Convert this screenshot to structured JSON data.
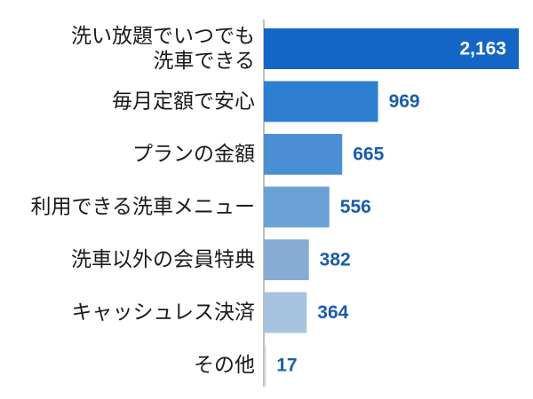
{
  "chart_data": {
    "type": "bar",
    "orientation": "horizontal",
    "categories": [
      [
        "洗い放題でいつでも",
        "洗車できる"
      ],
      [
        "毎月定額で安心"
      ],
      [
        "プランの金額"
      ],
      [
        "利用できる洗車メニュー"
      ],
      [
        "洗車以外の会員特典"
      ],
      [
        "キャッシュレス決済"
      ],
      [
        "その他"
      ]
    ],
    "values": [
      2163,
      969,
      665,
      556,
      382,
      364,
      17
    ],
    "value_labels": [
      "2,163",
      "969",
      "665",
      "556",
      "382",
      "364",
      "17"
    ],
    "bar_colors": [
      "#1466c6",
      "#2f7fd0",
      "#4a8fd4",
      "#6aa2d6",
      "#86acd6",
      "#a7c3e0",
      "#d0d0d0"
    ],
    "value_label_inside_color": "#ffffff",
    "value_label_outside_color": "#1a5da8",
    "axis_line_color": "#aaaaaa",
    "xlim": [
      0,
      2163
    ],
    "grid": false,
    "legend": "none"
  }
}
